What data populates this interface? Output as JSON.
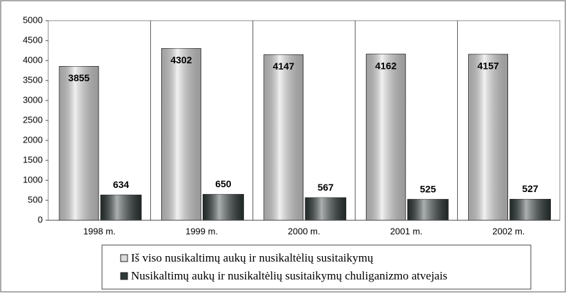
{
  "chart_data": {
    "type": "bar",
    "categories": [
      "1998 m.",
      "1999 m.",
      "2000 m.",
      "2001 m.",
      "2002 m."
    ],
    "series": [
      {
        "name": "Iš viso nusikaltimų aukų ir nusikaltėlių susitaikymų",
        "color": "#dcdcdc",
        "values": [
          3855,
          4302,
          4147,
          4162,
          4157
        ]
      },
      {
        "name": "Nusikaltimų aukų ir nusikaltėlių susitaikymų chuliganizmo atvejais",
        "color": "#2e3838",
        "values": [
          634,
          650,
          567,
          525,
          527
        ]
      }
    ],
    "ylim": [
      0,
      5000
    ],
    "yticks": [
      0,
      500,
      1000,
      1500,
      2000,
      2500,
      3000,
      3500,
      4000,
      4500,
      5000
    ],
    "grid": true,
    "legend": "bottom"
  }
}
